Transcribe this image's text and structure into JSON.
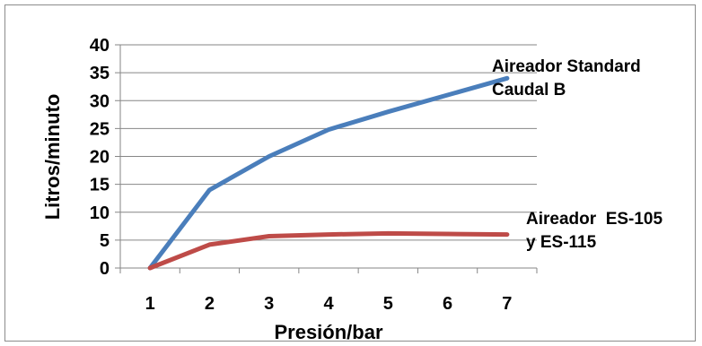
{
  "chart_data": {
    "type": "line",
    "x": [
      1,
      2,
      3,
      4,
      5,
      6,
      7
    ],
    "xlabel": "Presión/bar",
    "ylabel": "Litros/minuto",
    "xlim": [
      0.5,
      7.5
    ],
    "ylim": [
      0,
      40
    ],
    "yticks": [
      "0",
      "5",
      "10",
      "15",
      "20",
      "25",
      "30",
      "35",
      "40"
    ],
    "xticks": [
      "1",
      "2",
      "3",
      "4",
      "5",
      "6",
      "7"
    ],
    "grid": true,
    "series": [
      {
        "label_lines": [
          "Aireador Standard",
          "Caudal B"
        ],
        "color": "#4a7ebb",
        "values": [
          0,
          14,
          20,
          24.8,
          28,
          31,
          34
        ]
      },
      {
        "label_lines": [
          "Aireador  ES-105",
          "y ES-115"
        ],
        "color": "#be4b48",
        "values": [
          0,
          4.2,
          5.7,
          6,
          6.2,
          6.1,
          6
        ]
      }
    ]
  }
}
